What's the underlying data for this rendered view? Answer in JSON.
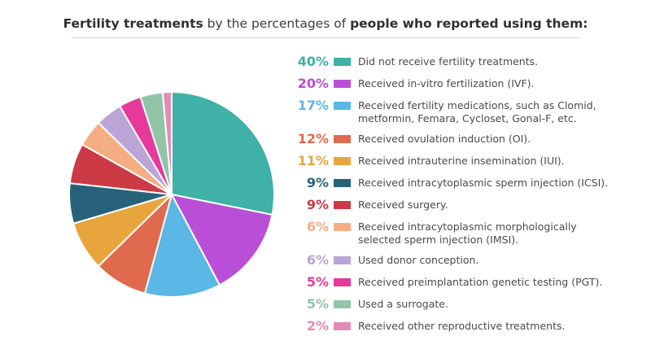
{
  "chart_data": {
    "type": "pie",
    "title_parts": [
      {
        "text": "Fertility treatments",
        "bold": true
      },
      {
        "text": " by the percentages of ",
        "bold": false
      },
      {
        "text": "people who reported using them:",
        "bold": true
      }
    ],
    "slices": [
      {
        "pct_label": "40%",
        "value": 40,
        "color": "#3fb1a6",
        "lines": [
          "Did not receive fertility treatments."
        ]
      },
      {
        "pct_label": "20%",
        "value": 20,
        "color": "#b94fd6",
        "lines": [
          "Received in-vitro fertilization (IVF)."
        ]
      },
      {
        "pct_label": "17%",
        "value": 17,
        "color": "#5bb7e5",
        "lines": [
          "Received fertility medications, such as Clomid,",
          "metformin, Femara, Cycloset, Gonal-F, etc."
        ]
      },
      {
        "pct_label": "12%",
        "value": 12,
        "color": "#e06a4e",
        "lines": [
          "Received ovulation induction (OI)."
        ]
      },
      {
        "pct_label": "11%",
        "value": 11,
        "color": "#e8a53e",
        "lines": [
          "Received intrauterine insemination (IUI)."
        ]
      },
      {
        "pct_label": "9%",
        "value": 9,
        "color": "#27627a",
        "lines": [
          "Received intracytoplasmic sperm injection (ICSI)."
        ]
      },
      {
        "pct_label": "9%",
        "value": 9,
        "color": "#cc3a46",
        "lines": [
          "Received surgery."
        ]
      },
      {
        "pct_label": "6%",
        "value": 6,
        "color": "#f5ad84",
        "lines": [
          "Received intracytoplasmic morphologically",
          "selected sperm injection (IMSI)."
        ]
      },
      {
        "pct_label": "6%",
        "value": 6,
        "color": "#bba4d6",
        "lines": [
          "Used donor conception."
        ]
      },
      {
        "pct_label": "5%",
        "value": 5,
        "color": "#e6399b",
        "lines": [
          "Received preimplantation genetic testing (PGT)."
        ]
      },
      {
        "pct_label": "5%",
        "value": 5,
        "color": "#92c5a8",
        "lines": [
          "Used a surrogate."
        ]
      },
      {
        "pct_label": "2%",
        "value": 2,
        "color": "#e48ab6",
        "lines": [
          "Received other reproductive treatments."
        ]
      }
    ]
  }
}
